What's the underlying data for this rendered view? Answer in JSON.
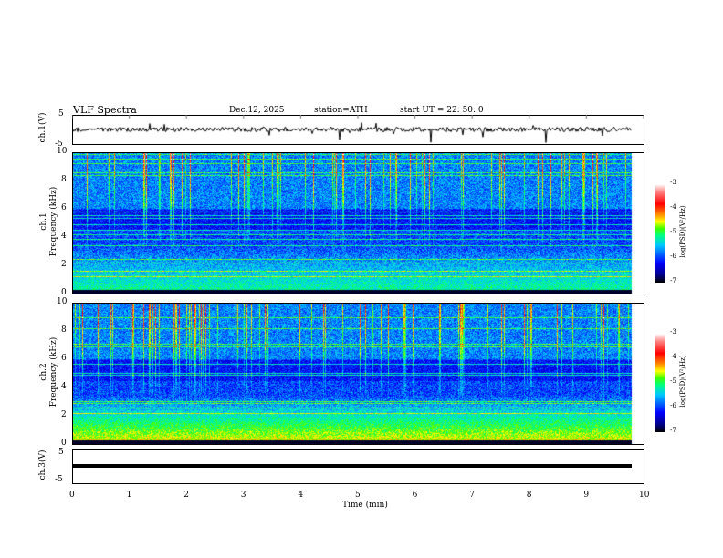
{
  "header": {
    "title": "VLF  Spectra",
    "date": "Dec.12, 2025",
    "station": "station=ATH",
    "start": "start  UT  =    22: 50: 0"
  },
  "panels": {
    "ch1": {
      "label": "ch.1(V)",
      "ymax": "5",
      "ymin": "-5"
    },
    "ch2": {
      "label1": "ch.1",
      "label2": "Frequency  (kHz)",
      "ticks": [
        "0",
        "2",
        "4",
        "6",
        "8",
        "10"
      ]
    },
    "ch3spec": {
      "label1": "ch.2",
      "label2": "Frequency  (kHz)",
      "ticks": [
        "0",
        "2",
        "4",
        "6",
        "8",
        "10"
      ]
    },
    "ch3": {
      "label": "ch.3(V)",
      "ymax": "5",
      "ymin": "-5"
    }
  },
  "colorbar": {
    "label": "log(PSD)(V²/Hz)",
    "ticks": [
      "-3",
      "-4",
      "-5",
      "-6",
      "-7"
    ]
  },
  "chart_data": {
    "type": "heatmap",
    "title": "VLF  Spectra",
    "xlabel": "Time  (min)",
    "xticks": [
      "0",
      "1",
      "2",
      "3",
      "4",
      "5",
      "6",
      "7",
      "8",
      "9",
      "10"
    ],
    "xlim": [
      0,
      10
    ],
    "data_end_min": 9.8,
    "ylabel": "Frequency (kHz)",
    "ylim": [
      0,
      10
    ],
    "color_range": [
      -7,
      -3
    ],
    "waveform_ylim": [
      -5,
      5
    ]
  }
}
